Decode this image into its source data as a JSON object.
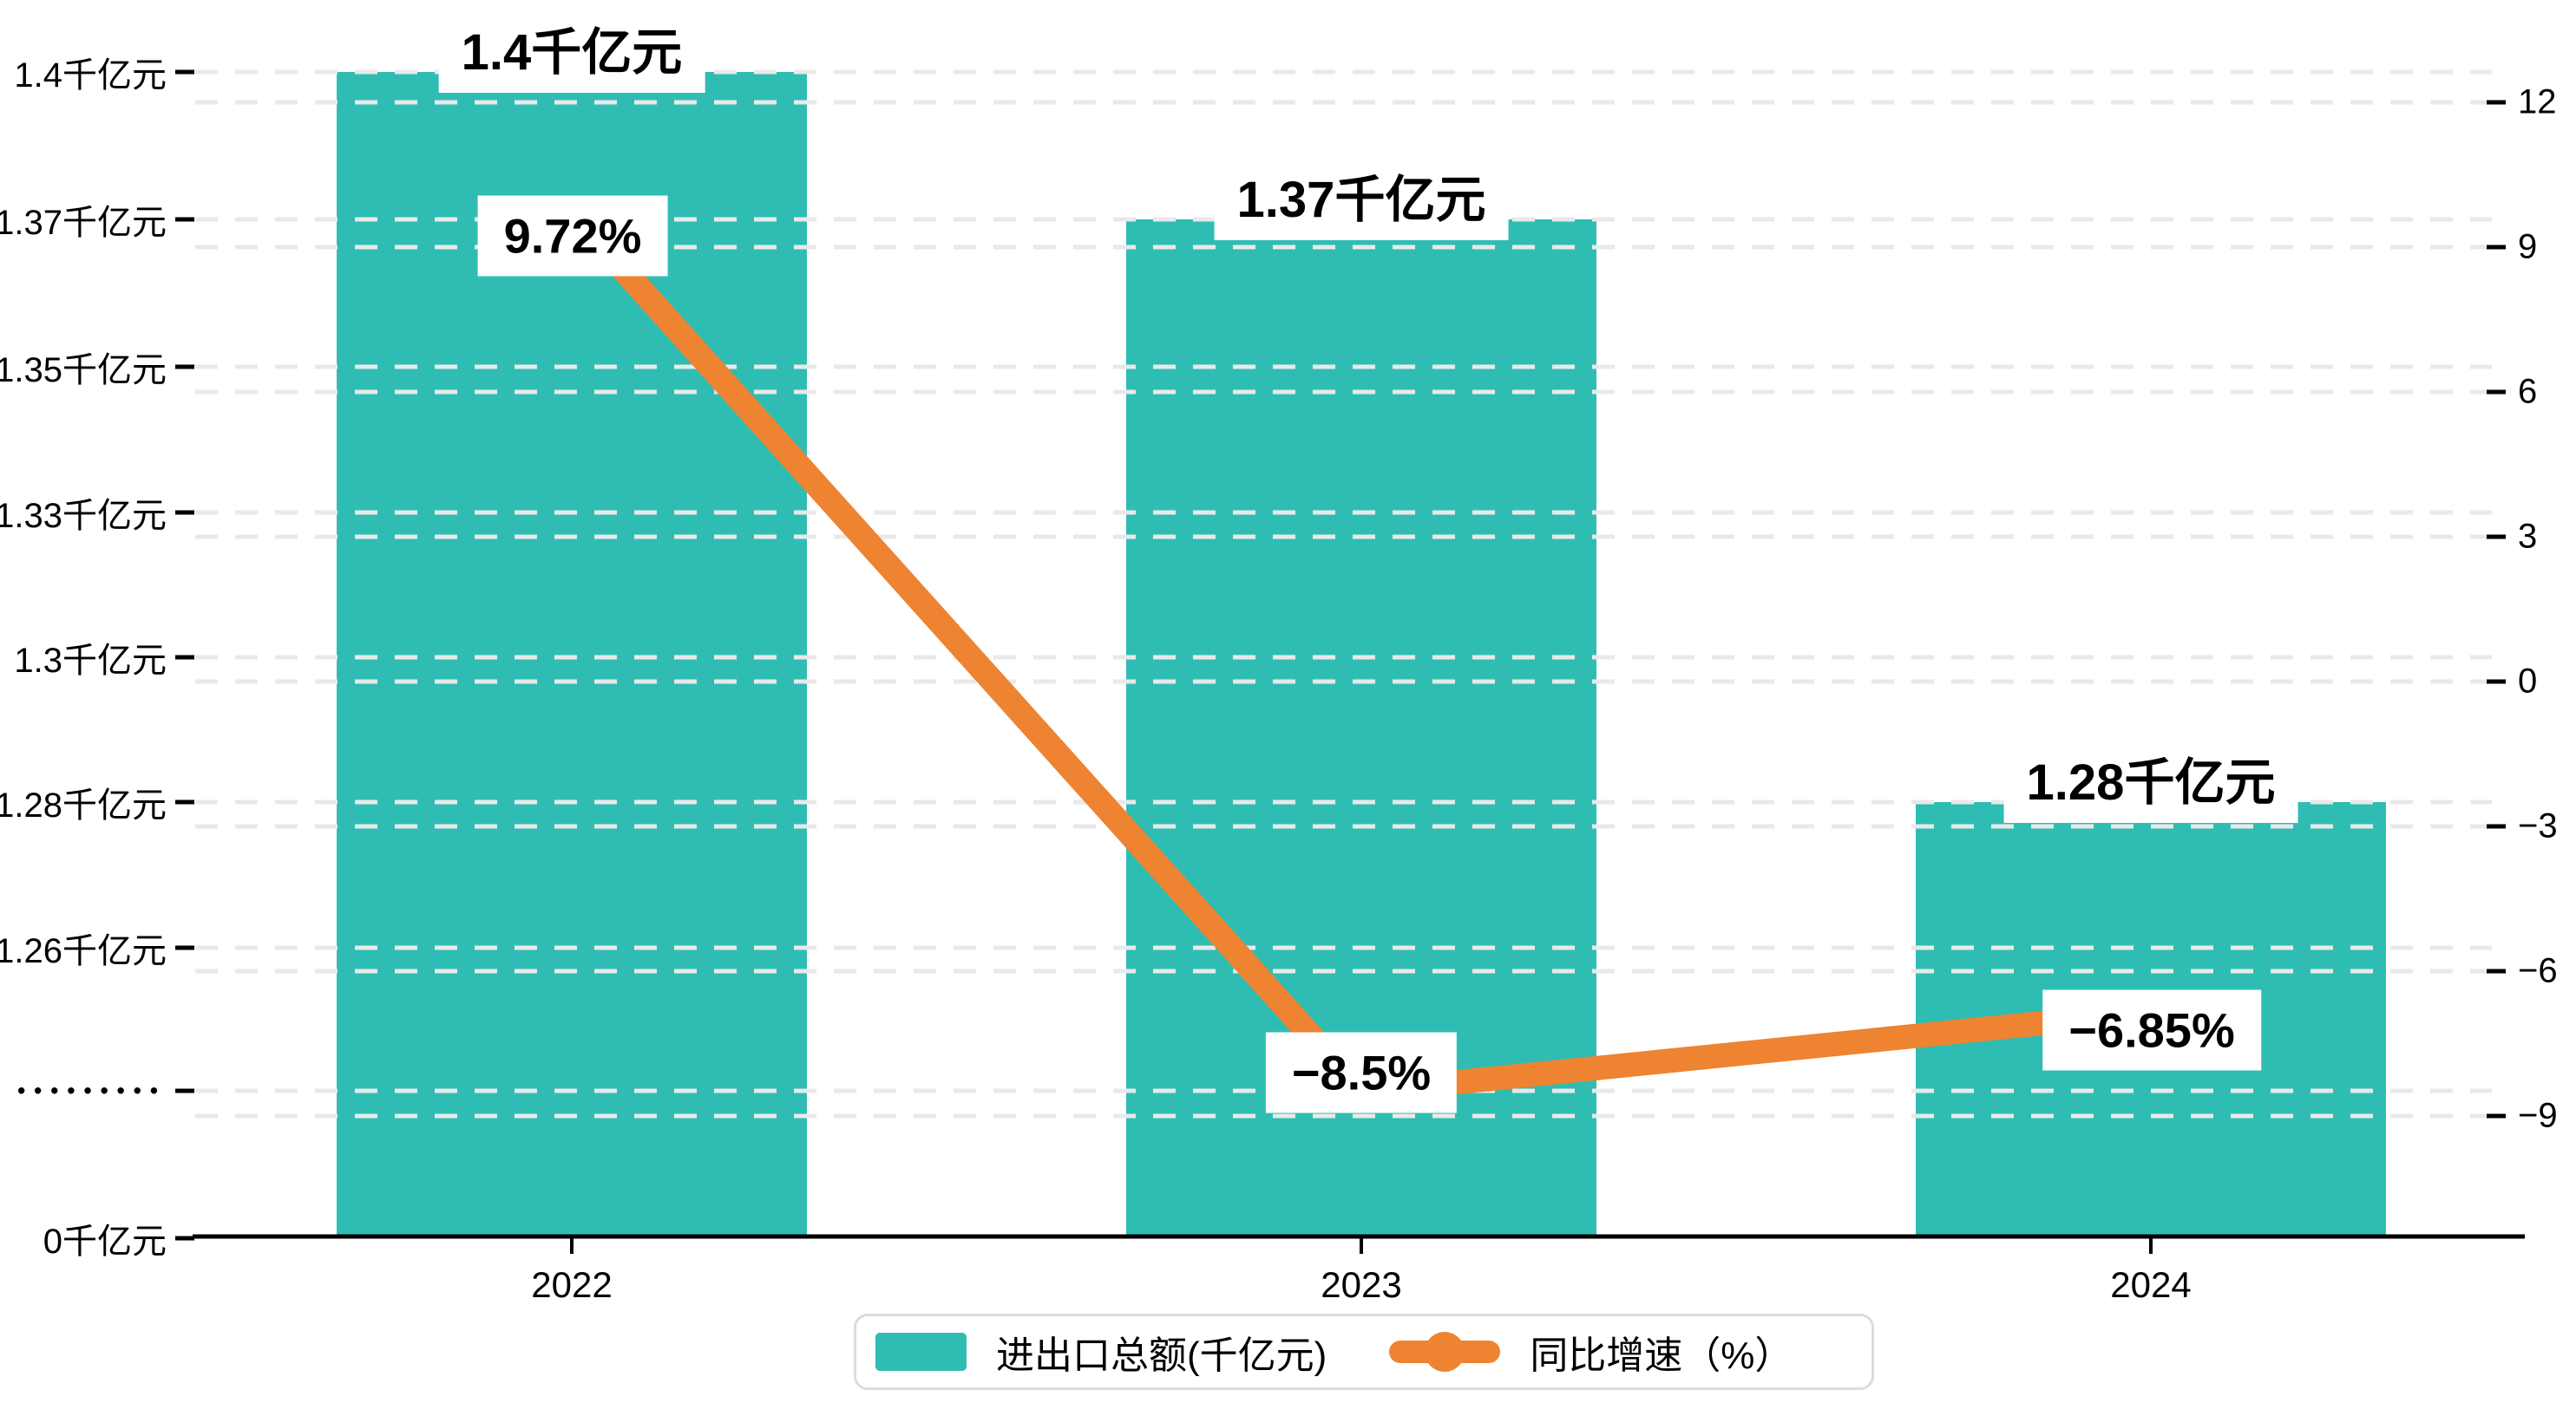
{
  "chart_data": {
    "type": "bar+line dual-axis",
    "categories": [
      "2022",
      "2023",
      "2024"
    ],
    "series": [
      {
        "name": "进出口总额(千亿元)",
        "type": "bar",
        "values": [
          1.4,
          1.37,
          1.28
        ],
        "labels": [
          "1.4千亿元",
          "1.37千亿元",
          "1.28千亿元"
        ],
        "color": "#2fbdb3",
        "axis": "left"
      },
      {
        "name": "同比增速（%）",
        "type": "line",
        "values": [
          9.72,
          -8.5,
          -6.85
        ],
        "labels": [
          "9.72%",
          "−8.5%",
          "−6.85%"
        ],
        "color": "#ee8331",
        "axis": "right"
      }
    ],
    "left_axis": {
      "tick_labels": [
        "1.4千亿元",
        "1.37千亿元",
        "1.35千亿元",
        "1.33千亿元",
        "1.3千亿元",
        "1.28千亿元",
        "1.26千亿元",
        "•••••••••",
        "0千亿元"
      ],
      "broken_axis": true
    },
    "right_axis": {
      "tick_labels": [
        "12",
        "9",
        "6",
        "3",
        "0",
        "−3",
        "−6",
        "−9"
      ],
      "values": [
        12,
        9,
        6,
        3,
        0,
        -3,
        -6,
        -9
      ],
      "range": [
        -9,
        12
      ]
    },
    "grid": true,
    "legend_position": "bottom",
    "title": ""
  },
  "legend": {
    "items": [
      {
        "label": "进出口总额(千亿元)",
        "type": "bar",
        "color": "#2fbdb3"
      },
      {
        "label": "同比增速（%）",
        "type": "line",
        "color": "#ee8331"
      }
    ]
  },
  "colors": {
    "bar": "#2fbdb3",
    "line": "#ee8331",
    "grid": "#e9e9e9",
    "axis": "#000000",
    "legend_border": "#dcdcdc",
    "label_bg": "#ffffff",
    "text": "#000000"
  }
}
